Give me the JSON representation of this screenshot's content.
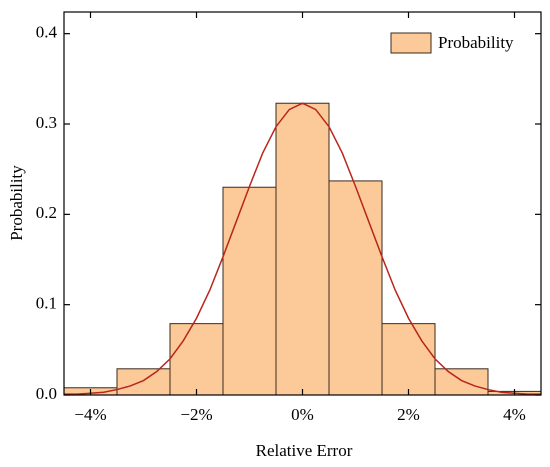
{
  "chart_data": {
    "type": "histogram",
    "x_label": "Relative Error",
    "y_label": "Probability",
    "bins": [
      -4.5,
      -3.5,
      -2.5,
      -1.5,
      -0.5,
      0.5,
      1.5,
      2.5,
      3.5,
      4.5
    ],
    "series": [
      {
        "name": "Probability",
        "color": "#fcca98",
        "values": [
          0.008,
          0.029,
          0.079,
          0.23,
          0.323,
          0.237,
          0.079,
          0.029,
          0.004
        ]
      }
    ],
    "fit": {
      "color": "#b8261c",
      "x": [
        -4.5,
        -4.25,
        -4,
        -3.75,
        -3.5,
        -3.25,
        -3,
        -2.75,
        -2.5,
        -2.25,
        -2,
        -1.75,
        -1.5,
        -1.25,
        -1,
        -0.75,
        -0.5,
        -0.25,
        0,
        0.25,
        0.5,
        0.75,
        1,
        1.25,
        1.5,
        1.75,
        2,
        2.25,
        2.5,
        2.75,
        3,
        3.25,
        3.5,
        3.75,
        4,
        4.25,
        4.5
      ],
      "y": [
        0.001,
        0.001,
        0.002,
        0.003,
        0.006,
        0.01,
        0.016,
        0.026,
        0.04,
        0.06,
        0.085,
        0.116,
        0.153,
        0.192,
        0.231,
        0.268,
        0.297,
        0.316,
        0.323,
        0.316,
        0.297,
        0.268,
        0.231,
        0.192,
        0.153,
        0.116,
        0.085,
        0.06,
        0.04,
        0.026,
        0.016,
        0.01,
        0.006,
        0.003,
        0.002,
        0.001,
        0.001
      ]
    },
    "xlim": [
      -4.5,
      4.5
    ],
    "ylim": [
      0,
      0.424
    ],
    "xticks": [
      {
        "value": -4,
        "label": "−4%"
      },
      {
        "value": -2,
        "label": "−2%"
      },
      {
        "value": 0,
        "label": "0%"
      },
      {
        "value": 2,
        "label": "2%"
      },
      {
        "value": 4,
        "label": "4%"
      }
    ],
    "yticks": [
      {
        "value": 0,
        "label": "0.0"
      },
      0.1,
      0.2,
      0.3,
      0.4
    ],
    "legend": "upper right"
  }
}
